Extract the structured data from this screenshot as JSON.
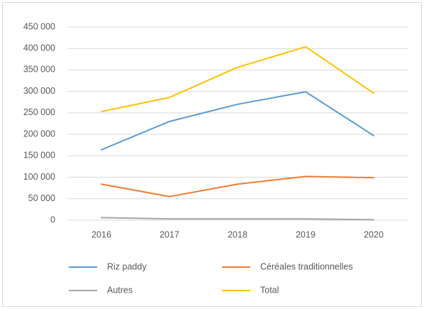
{
  "chart_data": {
    "type": "line",
    "categories": [
      "2016",
      "2017",
      "2018",
      "2019",
      "2020"
    ],
    "series": [
      {
        "name": "Riz paddy",
        "color": "#5b9bd5",
        "values": [
          164000,
          230000,
          270000,
          299000,
          197000
        ]
      },
      {
        "name": "Céréales traditionnelles",
        "color": "#ed7d31",
        "values": [
          84000,
          55000,
          84000,
          102000,
          99000
        ]
      },
      {
        "name": "Autres",
        "color": "#a5a5a5",
        "values": [
          6000,
          3000,
          3000,
          3000,
          1000
        ]
      },
      {
        "name": "Total",
        "color": "#ffc000",
        "values": [
          253000,
          286000,
          356000,
          404000,
          296000
        ]
      }
    ],
    "ylim": [
      0,
      450000
    ],
    "yticks": [
      {
        "value": 0,
        "label": "0"
      },
      {
        "value": 50000,
        "label": "50 000"
      },
      {
        "value": 100000,
        "label": "100 000"
      },
      {
        "value": 150000,
        "label": "150 000"
      },
      {
        "value": 200000,
        "label": "200 000"
      },
      {
        "value": 250000,
        "label": "250 000"
      },
      {
        "value": 300000,
        "label": "300 000"
      },
      {
        "value": 350000,
        "label": "350 000"
      },
      {
        "value": 400000,
        "label": "400 000"
      },
      {
        "value": 450000,
        "label": "450 000"
      }
    ],
    "grid": true
  }
}
